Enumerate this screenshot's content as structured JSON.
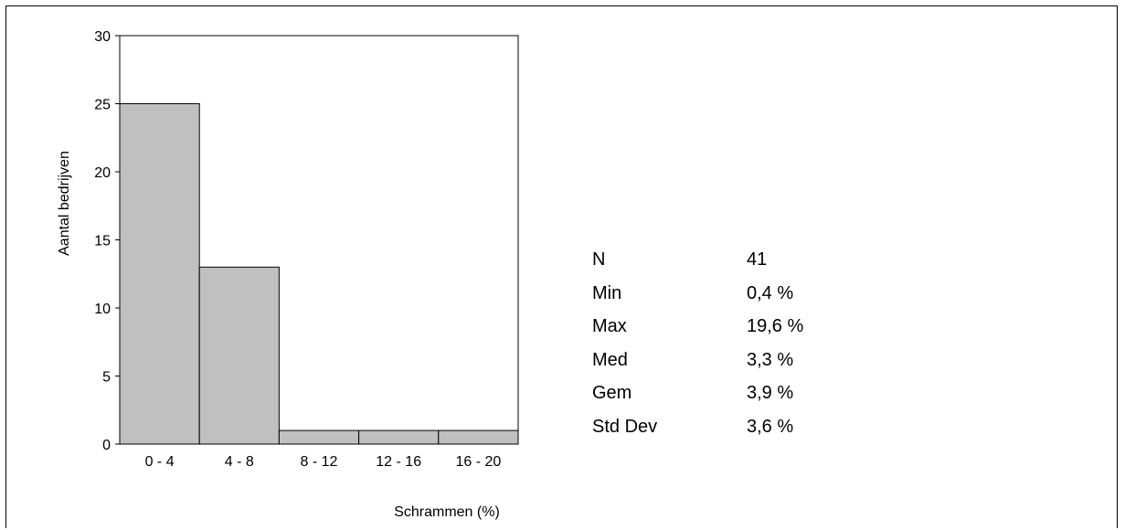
{
  "chart_data": {
    "type": "bar",
    "title": "",
    "xlabel": "Schrammen (%)",
    "ylabel": "Aantal bedrijven",
    "categories": [
      "0 - 4",
      "4 - 8",
      "8 - 12",
      "12 - 16",
      "16 - 20"
    ],
    "values": [
      25,
      13,
      1,
      1,
      1
    ],
    "ylim": [
      0,
      30
    ],
    "yticks": [
      0,
      5,
      10,
      15,
      20,
      25,
      30
    ],
    "bar_color": "#c0c0c0",
    "grid": false
  },
  "stats": [
    {
      "label": "N",
      "value": "41"
    },
    {
      "label": "Min",
      "value": "0,4 %"
    },
    {
      "label": "Max",
      "value": "19,6 %"
    },
    {
      "label": "Med",
      "value": "3,3 %"
    },
    {
      "label": "Gem",
      "value": "3,9 %"
    },
    {
      "label": "Std Dev",
      "value": "3,6 %"
    }
  ]
}
